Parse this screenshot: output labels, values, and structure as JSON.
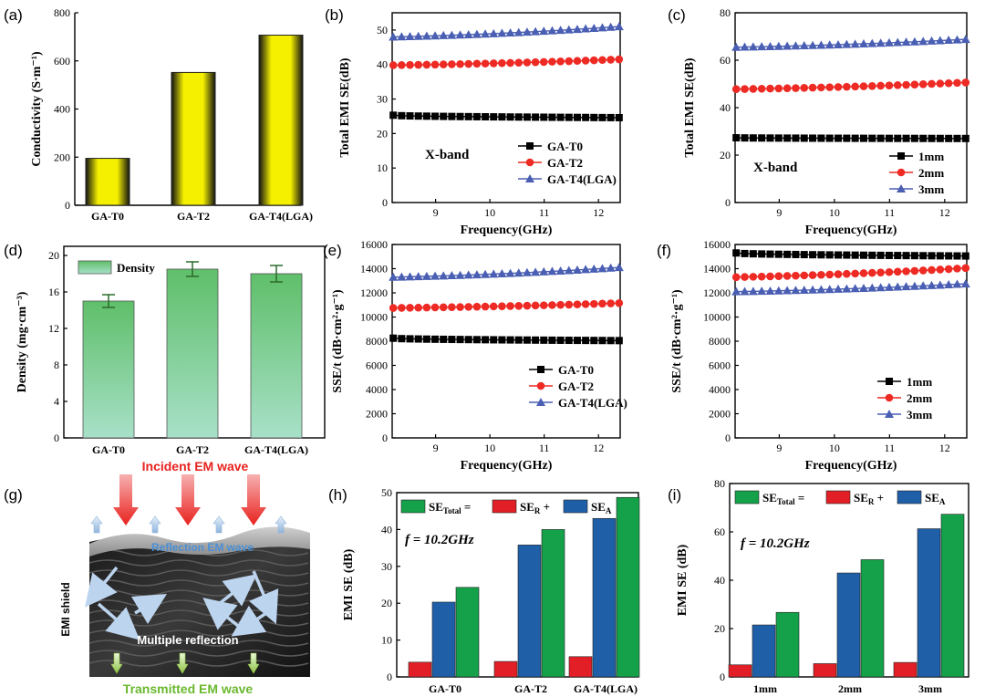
{
  "colors": {
    "black": "#000000",
    "red": "#ee2a24",
    "blue": "#4a5fb3",
    "green": "#1aa04a",
    "bar_red": "#e21f26",
    "bar_blue": "#1f5fa8",
    "bar_green": "#15a04a",
    "yellow": "#f5f000",
    "density_green": "#7fcf9f"
  },
  "chart_data": [
    {
      "id": "a",
      "panel_label": "(a)",
      "type": "bar",
      "categories": [
        "GA-T0",
        "GA-T2",
        "GA-T4(LGA)"
      ],
      "values": [
        195,
        552,
        707
      ],
      "ylabel": "Conductivity (S·m⁻¹)",
      "ylim": [
        0,
        800
      ],
      "yticks": [
        0,
        200,
        400,
        600,
        800
      ]
    },
    {
      "id": "b",
      "panel_label": "(b)",
      "type": "line",
      "xlabel": "Frequency(GHz)",
      "ylabel": "Total EMI SE(dB)",
      "xlim": [
        8.2,
        12.4
      ],
      "ylim": [
        0,
        55
      ],
      "xticks": [
        9,
        10,
        11,
        12
      ],
      "yticks": [
        0,
        10,
        20,
        30,
        40,
        50
      ],
      "annotation": "X-band",
      "legend_position": "lower-right",
      "series": [
        {
          "name": "GA-T0",
          "marker": "square",
          "start": 25.3,
          "end": 24.6
        },
        {
          "name": "GA-T2",
          "marker": "circle",
          "start": 39.8,
          "end": 41.5
        },
        {
          "name": "GA-T4(LGA)",
          "marker": "triangle",
          "start": 48.0,
          "end": 51.0
        }
      ]
    },
    {
      "id": "c",
      "panel_label": "(c)",
      "type": "line",
      "xlabel": "Frequency(GHz)",
      "ylabel": "Total EMI SE(dB)",
      "xlim": [
        8.2,
        12.4
      ],
      "ylim": [
        0,
        80
      ],
      "xticks": [
        9,
        10,
        11,
        12
      ],
      "yticks": [
        0,
        20,
        40,
        60,
        80
      ],
      "annotation": "X-band",
      "legend_position": "lower-right",
      "series": [
        {
          "name": "1mm",
          "marker": "square",
          "start": 27.3,
          "end": 27.0
        },
        {
          "name": "2mm",
          "marker": "circle",
          "start": 47.8,
          "end": 50.6
        },
        {
          "name": "3mm",
          "marker": "triangle",
          "start": 65.5,
          "end": 68.8
        }
      ]
    },
    {
      "id": "d",
      "panel_label": "(d)",
      "type": "bar",
      "categories": [
        "GA-T0",
        "GA-T2",
        "GA-T4(LGA)"
      ],
      "values": [
        15.0,
        18.5,
        18.0
      ],
      "errors": [
        0.7,
        0.8,
        0.9
      ],
      "ylabel": "Density (mg·cm⁻³)",
      "ylim": [
        0,
        21
      ],
      "yticks": [
        0,
        4,
        8,
        12,
        16,
        20
      ],
      "legend": "Density",
      "legend_position": "top-left"
    },
    {
      "id": "e",
      "panel_label": "(e)",
      "type": "line",
      "xlabel": "Frequency(GHz)",
      "ylabel": "SSE/t (dB·cm²·g⁻¹)",
      "xlim": [
        8.2,
        12.4
      ],
      "ylim": [
        0,
        16000
      ],
      "xticks": [
        9,
        10,
        11,
        12
      ],
      "yticks": [
        0,
        2000,
        4000,
        6000,
        8000,
        10000,
        12000,
        14000,
        16000
      ],
      "legend_position": "lower-right",
      "series": [
        {
          "name": "GA-T0",
          "marker": "square",
          "start": 8250,
          "end": 8050
        },
        {
          "name": "GA-T2",
          "marker": "circle",
          "start": 10750,
          "end": 11150
        },
        {
          "name": "GA-T4(LGA)",
          "marker": "triangle",
          "start": 13300,
          "end": 14100
        }
      ]
    },
    {
      "id": "f",
      "panel_label": "(f)",
      "type": "line",
      "xlabel": "Frequency(GHz)",
      "ylabel": "SSE/t (dB·cm²·g⁻¹)",
      "xlim": [
        8.2,
        12.4
      ],
      "ylim": [
        0,
        16000
      ],
      "xticks": [
        9,
        10,
        11,
        12
      ],
      "yticks": [
        0,
        2000,
        4000,
        6000,
        8000,
        10000,
        12000,
        14000,
        16000
      ],
      "legend_position": "lower-right",
      "series": [
        {
          "name": "1mm",
          "marker": "square",
          "start": 15300,
          "end": 15050
        },
        {
          "name": "2mm",
          "marker": "circle",
          "start": 13300,
          "end": 14050
        },
        {
          "name": "3mm",
          "marker": "triangle",
          "start": 12100,
          "end": 12750
        }
      ]
    },
    {
      "id": "h",
      "panel_label": "(h)",
      "type": "bar",
      "categories": [
        "GA-T0",
        "GA-T2",
        "GA-T4(LGA)"
      ],
      "ylabel": "EMI SE (dB)",
      "ylim": [
        0,
        50
      ],
      "yticks": [
        0,
        10,
        20,
        30,
        40,
        50
      ],
      "annotation": "f = 10.2GHz",
      "legend_position": "top",
      "series": [
        {
          "name": "SE_R",
          "values": [
            4.0,
            4.2,
            5.5
          ]
        },
        {
          "name": "SE_A",
          "values": [
            20.3,
            35.8,
            43.0
          ]
        },
        {
          "name": "SE_Total",
          "values": [
            24.3,
            40.0,
            48.7
          ]
        }
      ]
    },
    {
      "id": "i",
      "panel_label": "(i)",
      "type": "bar",
      "categories": [
        "1mm",
        "2mm",
        "3mm"
      ],
      "ylabel": "EMI SE (dB)",
      "ylim": [
        0,
        80
      ],
      "yticks": [
        0,
        20,
        40,
        60,
        80
      ],
      "annotation": "f = 10.2GHz",
      "legend_position": "top",
      "series": [
        {
          "name": "SE_R",
          "values": [
            5.0,
            5.5,
            6.0
          ]
        },
        {
          "name": "SE_A",
          "values": [
            21.5,
            43.0,
            61.3
          ]
        },
        {
          "name": "SE_Total",
          "values": [
            26.7,
            48.5,
            67.3
          ]
        }
      ]
    }
  ],
  "illustration": {
    "panel_label": "(g)",
    "incident": "Incident EM wave",
    "reflection": "Reflection EM wave",
    "multiple": "Multiple reflection",
    "transmitted": "Transmitted EM wave",
    "shield": "EMI shield"
  }
}
